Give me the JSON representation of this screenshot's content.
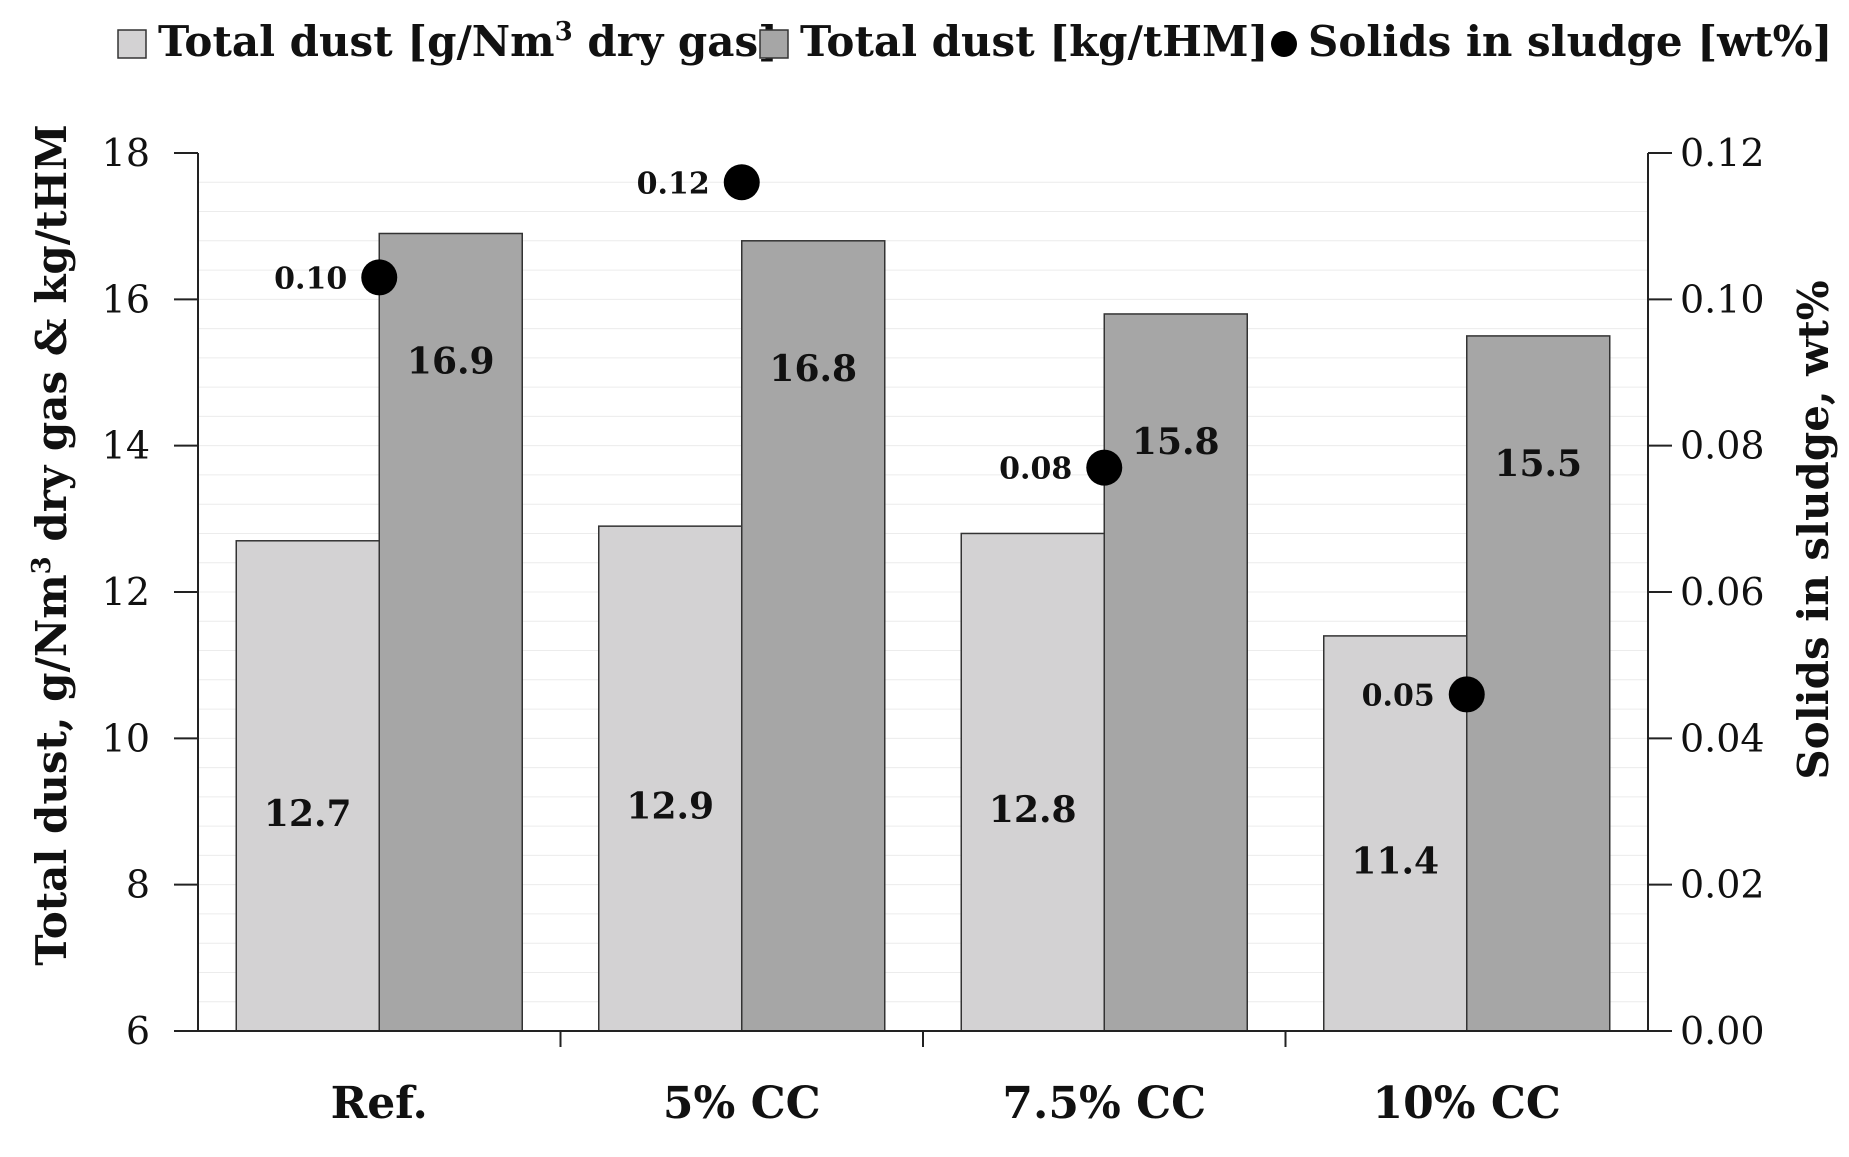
{
  "chart_data": {
    "type": "bar",
    "categories": [
      "Ref.",
      "5% CC",
      "7.5% CC",
      "10% CC"
    ],
    "series": [
      {
        "name": "Total dust [g/Nm3 dry gas]",
        "axis": "left",
        "color": "#d3d2d3",
        "values": [
          12.7,
          12.9,
          12.8,
          11.4
        ],
        "labels": [
          "12.7",
          "12.9",
          "12.8",
          "11.4"
        ]
      },
      {
        "name": "Total dust [kg/tHM]",
        "axis": "left",
        "color": "#a6a6a6",
        "values": [
          16.9,
          16.8,
          15.8,
          15.5
        ],
        "labels": [
          "16.9",
          "16.8",
          "15.8",
          "15.5"
        ]
      }
    ],
    "points": {
      "name": "Solids in sludge [wt%]",
      "axis": "right",
      "color": "#000000",
      "values": [
        0.103,
        0.116,
        0.077,
        0.046
      ],
      "labels": [
        "0.10",
        "0.12",
        "0.08",
        "0.05"
      ]
    },
    "left_axis": {
      "min": 6,
      "max": 18,
      "ticks": [
        "6",
        "8",
        "10",
        "12",
        "14",
        "16",
        "18"
      ],
      "title_main": "Total dust, g/Nm",
      "title_sup": "3",
      "title_rest": " dry gas & kg/tHM"
    },
    "right_axis": {
      "min": 0,
      "max": 0.12,
      "ticks": [
        "0.00",
        "0.02",
        "0.04",
        "0.06",
        "0.08",
        "0.10",
        "0.12"
      ],
      "title": "Solids in sludge, wt%"
    },
    "legend": {
      "position": "top",
      "item1_main": "Total dust [g/Nm",
      "item1_sup": "3",
      "item1_rest": " dry gas]",
      "item2": "Total dust [kg/tHM]",
      "item3": "Solids in sludge [wt%]"
    },
    "grid": true
  }
}
